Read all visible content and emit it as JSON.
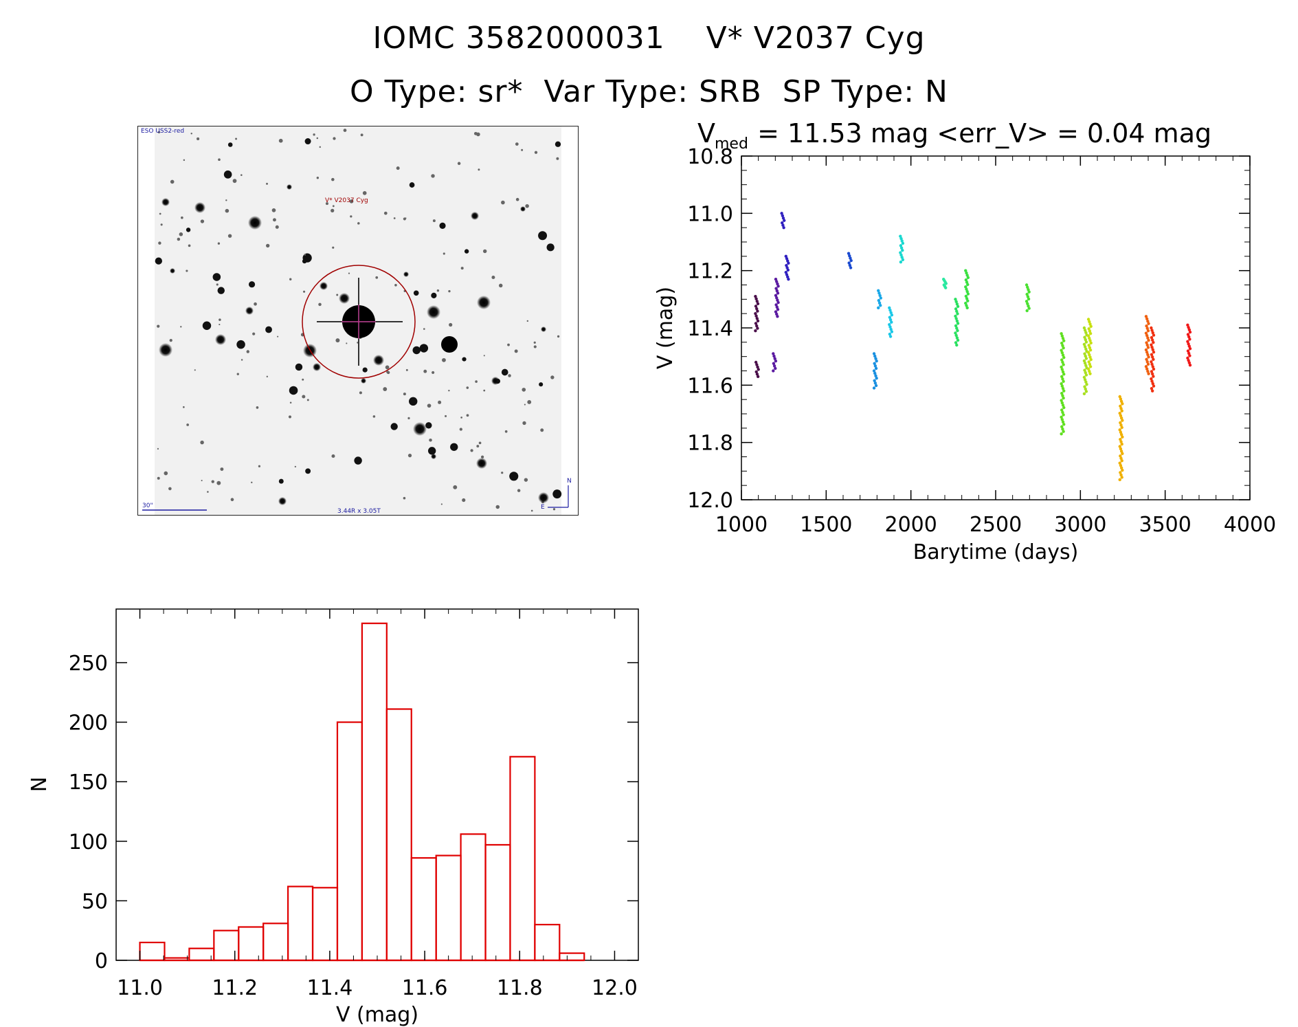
{
  "header": {
    "line1": "IOMC 3582000031    V* V2037 Cyg",
    "line2": "O Type: sr*  Var Type: SRB  SP Type: N"
  },
  "finder_chart": {
    "survey_label": "ESO USS2-red",
    "target_label": "V* V2037 Cyg",
    "scale_label": "30\"",
    "size_label": "3.44R x 3.05T",
    "north_label": "N",
    "east_label": "E",
    "marker_color": "#a00000",
    "label_color": "#1a1aa0"
  },
  "chart_data": [
    {
      "type": "scatter",
      "title_main": "V",
      "title_sub": "med",
      "title_rest": " = 11.53 mag <err_V> = 0.04 mag",
      "xlabel": "Barytime (days)",
      "ylabel": "V (mag)",
      "xlim": [
        1000,
        4000
      ],
      "ylim": [
        12.0,
        10.8
      ],
      "y_inverted": true,
      "xticks": [
        "1000",
        "1500",
        "2000",
        "2500",
        "3000",
        "3500",
        "4000"
      ],
      "yticks": [
        "10.8",
        "11.0",
        "11.2",
        "11.4",
        "11.6",
        "11.8",
        "12.0"
      ],
      "groups": [
        {
          "x": 1090,
          "y_min": 11.29,
          "y_max": 11.41,
          "color": "#4a0f4a"
        },
        {
          "x": 1093,
          "y_min": 11.52,
          "y_max": 11.57,
          "color": "#4a0f4a"
        },
        {
          "x": 1195,
          "y_min": 11.49,
          "y_max": 11.55,
          "color": "#5a1aa0"
        },
        {
          "x": 1210,
          "y_min": 11.23,
          "y_max": 11.36,
          "color": "#5a1aa0"
        },
        {
          "x": 1245,
          "y_min": 11.0,
          "y_max": 11.05,
          "color": "#3020c0"
        },
        {
          "x": 1270,
          "y_min": 11.15,
          "y_max": 11.23,
          "color": "#3020c0"
        },
        {
          "x": 1640,
          "y_min": 11.14,
          "y_max": 11.19,
          "color": "#1a4ad0"
        },
        {
          "x": 1790,
          "y_min": 11.49,
          "y_max": 11.61,
          "color": "#1a90e0"
        },
        {
          "x": 1815,
          "y_min": 11.27,
          "y_max": 11.33,
          "color": "#1aa8e8"
        },
        {
          "x": 1880,
          "y_min": 11.33,
          "y_max": 11.43,
          "color": "#1ac8e8"
        },
        {
          "x": 1945,
          "y_min": 11.08,
          "y_max": 11.17,
          "color": "#1ad8d0"
        },
        {
          "x": 2200,
          "y_min": 11.23,
          "y_max": 11.26,
          "color": "#2ae8a0"
        },
        {
          "x": 2270,
          "y_min": 11.3,
          "y_max": 11.46,
          "color": "#2ae060"
        },
        {
          "x": 2330,
          "y_min": 11.2,
          "y_max": 11.33,
          "color": "#3ae040"
        },
        {
          "x": 2690,
          "y_min": 11.25,
          "y_max": 11.34,
          "color": "#4ae030"
        },
        {
          "x": 2895,
          "y_min": 11.42,
          "y_max": 11.77,
          "color": "#60e020"
        },
        {
          "x": 3030,
          "y_min": 11.4,
          "y_max": 11.63,
          "color": "#a8e020"
        },
        {
          "x": 3055,
          "y_min": 11.37,
          "y_max": 11.56,
          "color": "#c8e010"
        },
        {
          "x": 3240,
          "y_min": 11.64,
          "y_max": 11.93,
          "color": "#f0b000"
        },
        {
          "x": 3395,
          "y_min": 11.36,
          "y_max": 11.56,
          "color": "#f06010"
        },
        {
          "x": 3425,
          "y_min": 11.4,
          "y_max": 11.62,
          "color": "#f03010"
        },
        {
          "x": 3640,
          "y_min": 11.39,
          "y_max": 11.53,
          "color": "#f01818"
        }
      ]
    },
    {
      "type": "bar",
      "xlabel": "V (mag)",
      "ylabel": "N",
      "xlim": [
        10.95,
        12.05
      ],
      "ylim": [
        0,
        295
      ],
      "xticks": [
        "11.0",
        "11.2",
        "11.4",
        "11.6",
        "11.8",
        "12.0"
      ],
      "yticks": [
        "0",
        "50",
        "100",
        "150",
        "200",
        "250"
      ],
      "bin_width": 0.052,
      "bin_starts": [
        11.0,
        11.052,
        11.104,
        11.156,
        11.208,
        11.26,
        11.312,
        11.364,
        11.416,
        11.468,
        11.52,
        11.572,
        11.624,
        11.676,
        11.728,
        11.78,
        11.832,
        11.884
      ],
      "values": [
        15,
        2,
        10,
        25,
        28,
        31,
        62,
        61,
        200,
        283,
        211,
        86,
        88,
        106,
        97,
        171,
        30,
        6
      ],
      "bar_color": "#e00000"
    }
  ]
}
